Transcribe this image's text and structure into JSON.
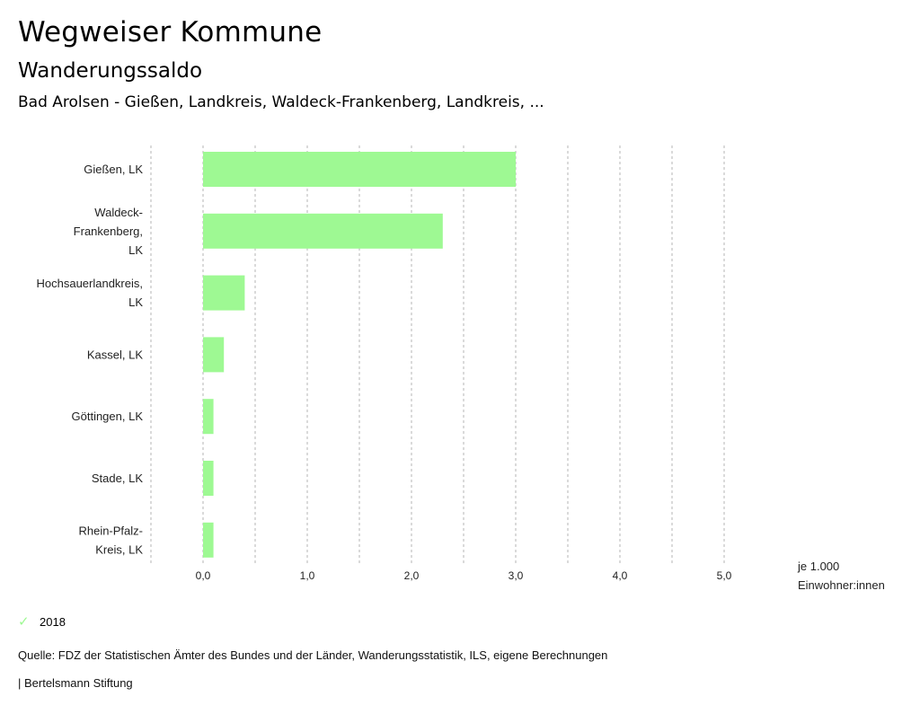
{
  "header": {
    "title": "Wegweiser Kommune",
    "subtitle": "Wanderungssaldo",
    "region": "Bad Arolsen - Gießen, Landkreis, Waldeck-Frankenberg, Landkreis, ..."
  },
  "chart_data": {
    "type": "bar",
    "orientation": "horizontal",
    "categories": [
      [
        "Gießen, LK"
      ],
      [
        "Waldeck-",
        "Frankenberg,",
        "LK"
      ],
      [
        "Hochsauerlandkreis,",
        "LK"
      ],
      [
        "Kassel, LK"
      ],
      [
        "Göttingen, LK"
      ],
      [
        "Stade, LK"
      ],
      [
        "Rhein-Pfalz-",
        "Kreis, LK"
      ]
    ],
    "series": [
      {
        "name": "2018",
        "color": "#9ef993",
        "values": [
          3.0,
          2.3,
          0.4,
          0.2,
          0.1,
          0.1,
          0.1
        ]
      }
    ],
    "x_ticks": [
      0,
      1,
      2,
      3,
      4,
      5
    ],
    "x_tick_labels": [
      "0,0",
      "1,0",
      "2,0",
      "3,0",
      "4,0",
      "5,0"
    ],
    "xlim": [
      -0.5,
      5.5
    ],
    "grid_step": 0.5,
    "grid": true,
    "unit_label": [
      "je 1.000",
      "Einwohner:innen"
    ],
    "legend_position": "bottom-left"
  },
  "legend": {
    "label": "2018",
    "color": "#9ef993"
  },
  "footer": {
    "source": "Quelle: FDZ der Statistischen Ämter des Bundes und der Länder, Wanderungsstatistik, ILS, eigene Berechnungen",
    "credit": "| Bertelsmann Stiftung"
  }
}
